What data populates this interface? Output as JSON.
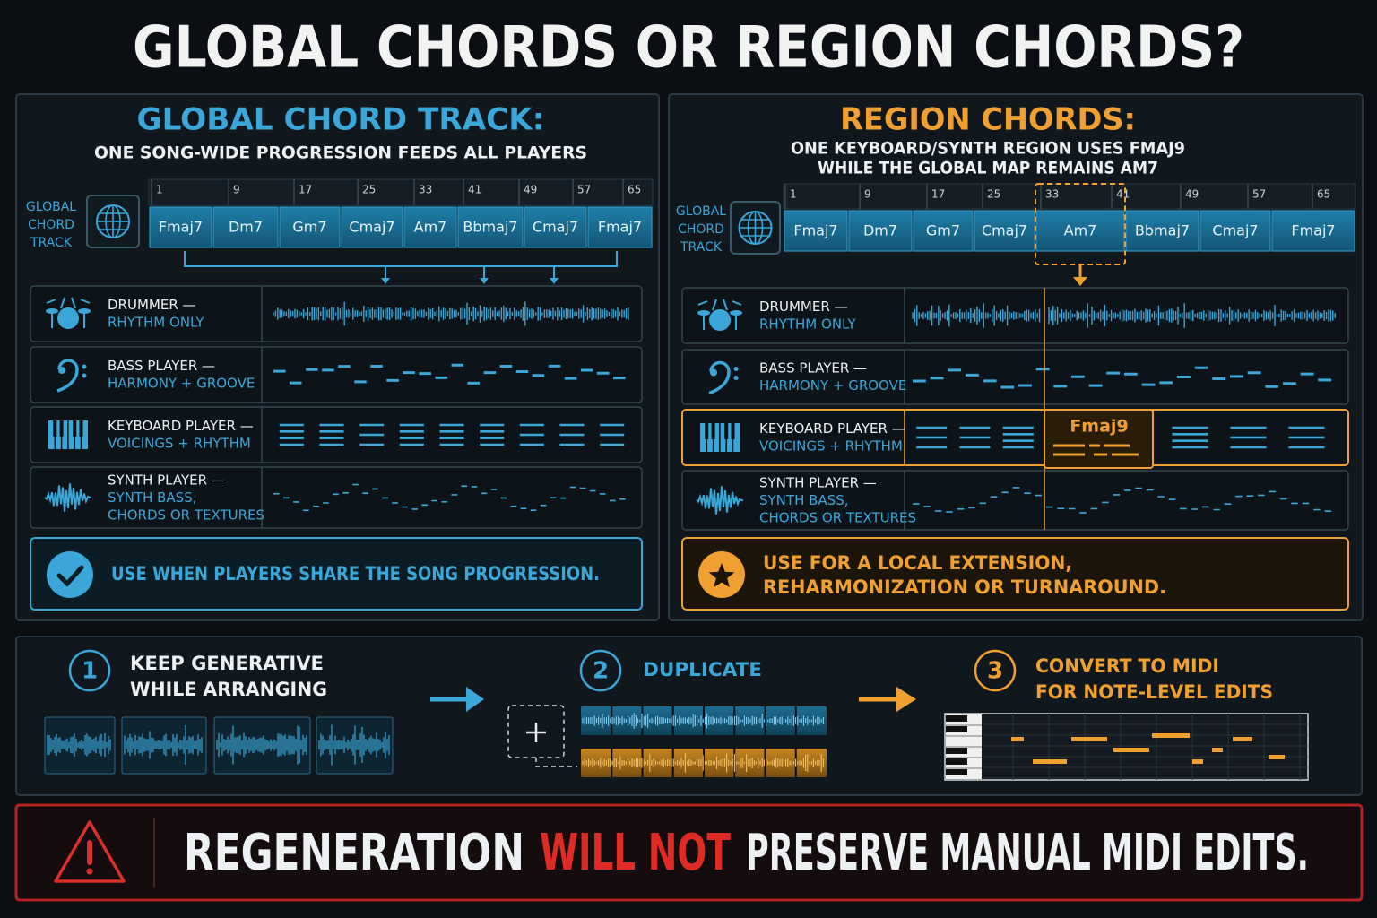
{
  "title": "GLOBAL CHORDS OR REGION CHORDS?",
  "global_panel": {
    "heading": "GLOBAL CHORD TRACK:",
    "subheading": [
      "ONE SONG-WIDE PROGRESSION FEEDS ALL PLAYERS"
    ],
    "track_label": [
      "GLOBAL",
      "CHORD",
      "TRACK"
    ],
    "bars": [
      1,
      9,
      17,
      25,
      33,
      41,
      49,
      57,
      65
    ],
    "chords": [
      "Fmaj7",
      "Dm7",
      "Gm7",
      "Cmaj7",
      "Am7",
      "Bbmaj7",
      "Cmaj7",
      "Fmaj7"
    ],
    "players": [
      {
        "name": "DRUMMER —",
        "role": [
          "RHYTHM ONLY"
        ]
      },
      {
        "name": "BASS PLAYER —",
        "role": [
          "HARMONY + GROOVE"
        ]
      },
      {
        "name": "KEYBOARD PLAYER —",
        "role": [
          "VOICINGS + RHYTHM"
        ]
      },
      {
        "name": "SYNTH PLAYER —",
        "role": [
          "SYNTH BASS,",
          "CHORDS OR TEXTURES"
        ]
      }
    ],
    "note": [
      "USE WHEN PLAYERS SHARE THE SONG PROGRESSION."
    ]
  },
  "region_panel": {
    "heading": "REGION CHORDS:",
    "subheading": [
      "ONE KEYBOARD/SYNTH REGION USES FMAJ9",
      "WHILE THE GLOBAL MAP REMAINS AM7"
    ],
    "track_label": [
      "GLOBAL",
      "CHORD",
      "TRACK"
    ],
    "bars": [
      1,
      9,
      17,
      25,
      33,
      41,
      49,
      57,
      65
    ],
    "chords": [
      "Fmaj7",
      "Dm7",
      "Gm7",
      "Cmaj7",
      "Am7",
      "Bbmaj7",
      "Cmaj7",
      "Fmaj7"
    ],
    "players": [
      {
        "name": "DRUMMER —",
        "role": [
          "RHYTHM ONLY"
        ]
      },
      {
        "name": "BASS PLAYER —",
        "role": [
          "HARMONY + GROOVE"
        ]
      },
      {
        "name": "KEYBOARD PLAYER —",
        "role": [
          "VOICINGS + RHYTHM"
        ]
      },
      {
        "name": "SYNTH PLAYER —",
        "role": [
          "SYNTH BASS,",
          "CHORDS OR TEXTURES"
        ]
      }
    ],
    "region_chord": "Fmaj9",
    "note": [
      "USE FOR A LOCAL EXTENSION,",
      "REHARMONIZATION OR TURNAROUND."
    ]
  },
  "steps": [
    {
      "number": 1,
      "text": [
        "KEEP GENERATIVE",
        "WHILE ARRANGING"
      ]
    },
    {
      "number": 2,
      "text": [
        "DUPLICATE"
      ]
    },
    {
      "number": 3,
      "text": [
        "CONVERT TO MIDI",
        "FOR NOTE-LEVEL EDITS"
      ]
    }
  ],
  "warning": {
    "before": "REGENERATION",
    "emphasis": "WILL NOT",
    "after": "PRESERVE MANUAL MIDI EDITS."
  }
}
